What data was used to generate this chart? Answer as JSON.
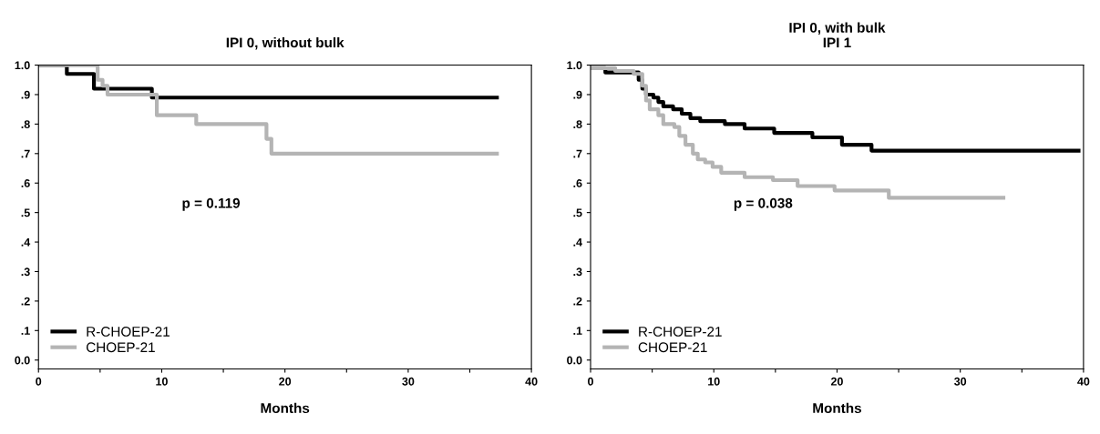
{
  "chart_data": [
    {
      "type": "step",
      "title": "IPI 0, without bulk",
      "xlabel": "Months",
      "xlim": [
        0,
        40
      ],
      "ylim": [
        -0.03,
        1.0
      ],
      "xticks": [
        0,
        {
          "value": 5,
          "label": null
        },
        10,
        {
          "value": 15,
          "label": null
        },
        20,
        {
          "value": 25,
          "label": null
        },
        30,
        {
          "value": 35,
          "label": null
        },
        40
      ],
      "yticks": [
        {
          "value": 0,
          "label": "0.0"
        },
        {
          "value": 0.1,
          "label": ".1"
        },
        {
          "value": 0.2,
          "label": ".2"
        },
        {
          "value": 0.3,
          "label": ".3"
        },
        {
          "value": 0.4,
          "label": ".4"
        },
        {
          "value": 0.5,
          "label": ".5"
        },
        {
          "value": 0.6,
          "label": ".6"
        },
        {
          "value": 0.7,
          "label": ".7"
        },
        {
          "value": 0.8,
          "label": ".8"
        },
        {
          "value": 0.9,
          "label": ".9"
        },
        {
          "value": 1.0,
          "label": "1.0"
        }
      ],
      "series": [
        {
          "name": "R-CHOEP-21",
          "color": "#000000",
          "x": [
            0,
            2.3,
            4.5,
            9.2,
            37.2
          ],
          "values": [
            1.0,
            0.97,
            0.92,
            0.89,
            0.89
          ]
        },
        {
          "name": "CHOEP-21",
          "color": "#b4b4b4",
          "x": [
            0,
            4.8,
            5.2,
            5.6,
            9.6,
            12.8,
            18.5,
            18.9,
            37.2
          ],
          "values": [
            1.0,
            0.95,
            0.93,
            0.9,
            0.83,
            0.8,
            0.75,
            0.7,
            0.7
          ]
        }
      ],
      "annotations": [
        "p = 0.119"
      ],
      "legend": "bottom left",
      "grid": false
    },
    {
      "type": "step",
      "title": "IPI 0, with bulk\nIPI 1",
      "xlabel": "Months",
      "xlim": [
        0,
        40
      ],
      "ylim": [
        -0.03,
        1.0
      ],
      "xticks": [
        0,
        {
          "value": 5,
          "label": null
        },
        10,
        {
          "value": 15,
          "label": null
        },
        20,
        {
          "value": 25,
          "label": null
        },
        30,
        {
          "value": 35,
          "label": null
        },
        40
      ],
      "yticks": [
        {
          "value": 0,
          "label": "0.0"
        },
        {
          "value": 0.1,
          "label": ".1"
        },
        {
          "value": 0.2,
          "label": ".2"
        },
        {
          "value": 0.3,
          "label": ".3"
        },
        {
          "value": 0.4,
          "label": ".4"
        },
        {
          "value": 0.5,
          "label": ".5"
        },
        {
          "value": 0.6,
          "label": ".6"
        },
        {
          "value": 0.7,
          "label": ".7"
        },
        {
          "value": 0.8,
          "label": ".8"
        },
        {
          "value": 0.9,
          "label": ".9"
        },
        {
          "value": 1.0,
          "label": "1.0"
        }
      ],
      "series": [
        {
          "name": "R-CHOEP-21",
          "color": "#000000",
          "x": [
            0,
            1.2,
            3.9,
            4.2,
            4.5,
            5.1,
            5.5,
            5.9,
            6.7,
            7.4,
            8.1,
            8.9,
            10.9,
            12.5,
            14.9,
            18.0,
            20.4,
            22.8,
            39.6
          ],
          "values": [
            0.99,
            0.975,
            0.95,
            0.92,
            0.9,
            0.89,
            0.875,
            0.86,
            0.85,
            0.835,
            0.82,
            0.81,
            0.8,
            0.785,
            0.77,
            0.755,
            0.73,
            0.71,
            0.71
          ]
        },
        {
          "name": "CHOEP-21",
          "color": "#b4b4b4",
          "x": [
            0,
            2.0,
            3.5,
            4.2,
            4.5,
            4.8,
            5.5,
            5.9,
            6.8,
            7.2,
            7.7,
            8.3,
            8.7,
            9.3,
            9.9,
            10.6,
            12.5,
            14.8,
            16.8,
            19.8,
            24.2,
            33.5
          ],
          "values": [
            0.99,
            0.98,
            0.97,
            0.93,
            0.88,
            0.85,
            0.83,
            0.8,
            0.79,
            0.76,
            0.73,
            0.7,
            0.68,
            0.67,
            0.655,
            0.635,
            0.62,
            0.61,
            0.59,
            0.575,
            0.55,
            0.55
          ]
        }
      ],
      "annotations": [
        "p = 0.038"
      ],
      "legend": "bottom left",
      "grid": false
    }
  ]
}
